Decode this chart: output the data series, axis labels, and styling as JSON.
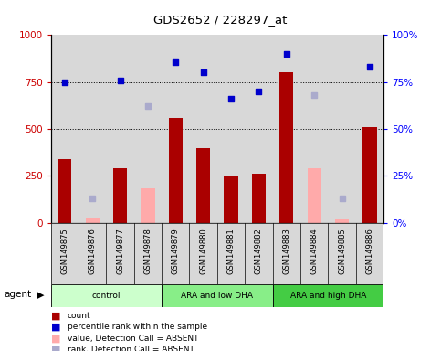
{
  "title": "GDS2652 / 228297_at",
  "samples": [
    "GSM149875",
    "GSM149876",
    "GSM149877",
    "GSM149878",
    "GSM149879",
    "GSM149880",
    "GSM149881",
    "GSM149882",
    "GSM149883",
    "GSM149884",
    "GSM149885",
    "GSM149886"
  ],
  "count_values": [
    340,
    null,
    290,
    null,
    560,
    400,
    250,
    260,
    800,
    null,
    null,
    510
  ],
  "count_absent": [
    null,
    30,
    null,
    null,
    null,
    null,
    null,
    null,
    null,
    null,
    20,
    null
  ],
  "value_absent": [
    null,
    null,
    null,
    185,
    null,
    null,
    null,
    null,
    null,
    290,
    null,
    null
  ],
  "percentile_present": [
    75,
    null,
    76,
    null,
    85.5,
    80,
    66,
    70,
    90,
    null,
    null,
    83
  ],
  "percentile_absent": [
    null,
    13,
    null,
    62,
    null,
    null,
    null,
    null,
    null,
    68,
    13,
    null
  ],
  "bar_color_present": "#aa0000",
  "bar_color_absent": "#ffaaaa",
  "dot_color_present": "#0000cc",
  "dot_color_absent": "#aaaacc",
  "groups": [
    {
      "label": "control",
      "start": 0,
      "end": 4,
      "color": "#ccffcc"
    },
    {
      "label": "ARA and low DHA",
      "start": 4,
      "end": 8,
      "color": "#88ee88"
    },
    {
      "label": "ARA and high DHA",
      "start": 8,
      "end": 12,
      "color": "#44cc44"
    }
  ],
  "background_color": "#d8d8d8",
  "plot_bg": "#ffffff"
}
